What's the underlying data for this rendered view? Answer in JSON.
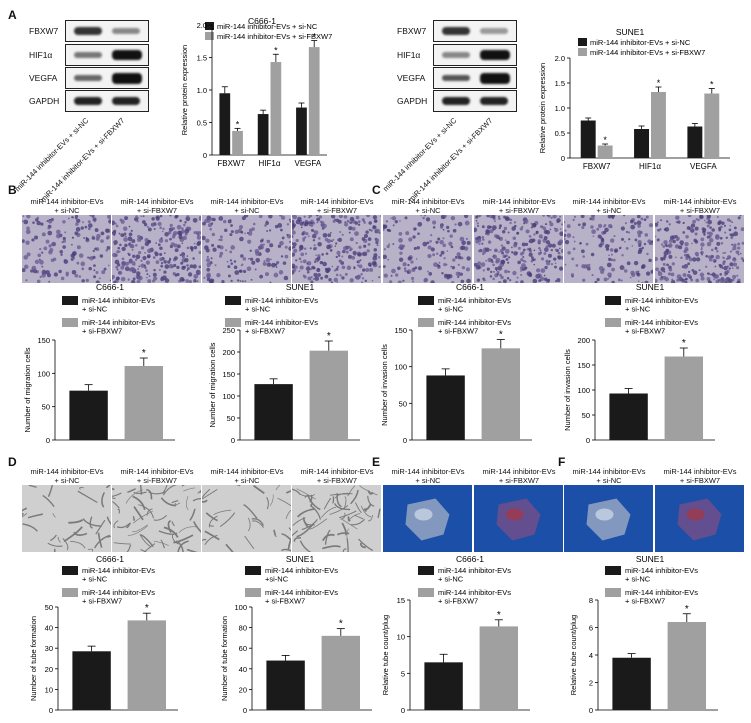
{
  "panel_letters": {
    "a": "A",
    "b1": "B",
    "c": "C",
    "d": "D",
    "e": "E",
    "f": "F"
  },
  "blot_labels": [
    "FBXW7",
    "HIF1α",
    "VEGFA",
    "GAPDH"
  ],
  "blot_lanes": [
    "miR-144 inhibitor-EVs + si-NC",
    "miR-144 inhibitor-EVs + si-FBXW7"
  ],
  "micro_captions": {
    "nc": "miR-144 inhibitor-EVs\n+ si-NC",
    "fb": "miR-144 inhibitor-EVs\n+ si-FBXW7"
  },
  "colors": {
    "nc": "#1a1a1a",
    "fb": "#a0a0a0",
    "transwell": "#b8b2c9",
    "tube": "#cfcfcf",
    "plug_bg": "#1b4fa8"
  },
  "chart_data": [
    {
      "id": "A-C666",
      "type": "bar",
      "title": "C666-1",
      "ylabel": "Relative protein expression",
      "categories": [
        "FBXW7",
        "HIF1α",
        "VEGFA"
      ],
      "series": [
        {
          "name": "miR-144 inhibitor-EVs + si-NC",
          "values": [
            0.95,
            0.63,
            0.73
          ],
          "err": [
            0.1,
            0.06,
            0.07
          ]
        },
        {
          "name": "miR-144 inhibitor-EVs + si-FBXW7",
          "values": [
            0.37,
            1.43,
            1.66
          ],
          "err": [
            0.04,
            0.12,
            0.1
          ]
        }
      ],
      "ylim": [
        0,
        2.0
      ],
      "yticks": [
        "0",
        "0.5",
        "1.0",
        "1.5",
        "2.0"
      ],
      "sig": "*",
      "legend": "top"
    },
    {
      "id": "A-SUNE",
      "type": "bar",
      "title": "SUNE1",
      "ylabel": "Relative protein expression",
      "categories": [
        "FBXW7",
        "HIF1α",
        "VEGFA"
      ],
      "series": [
        {
          "name": "miR-144 inhibitor-EVs + si-NC",
          "values": [
            0.75,
            0.58,
            0.63
          ],
          "err": [
            0.05,
            0.06,
            0.06
          ]
        },
        {
          "name": "miR-144 inhibitor-EVs + si-FBXW7",
          "values": [
            0.25,
            1.32,
            1.29
          ],
          "err": [
            0.03,
            0.1,
            0.1
          ]
        }
      ],
      "ylim": [
        0,
        2.0
      ],
      "yticks": [
        "0",
        "0.5",
        "1.0",
        "1.5",
        "2.0"
      ],
      "sig": "*",
      "legend": "top"
    },
    {
      "id": "B-C666",
      "type": "bar",
      "title": "C666-1",
      "ylabel": "Number of migration cells",
      "categories": [
        ""
      ],
      "series": [
        {
          "name": "miR-144 inhibitor-EVs\n+ si-NC",
          "values": [
            74
          ],
          "err": [
            9
          ]
        },
        {
          "name": "miR-144 inhibitor-EVs\n+ si-FBXW7",
          "values": [
            111
          ],
          "err": [
            12
          ]
        }
      ],
      "ylim": [
        0,
        150
      ],
      "yticks": [
        "0",
        "50",
        "100",
        "150"
      ],
      "sig": "*",
      "legend": "top"
    },
    {
      "id": "B-SUNE",
      "type": "bar",
      "title": "SUNE1",
      "ylabel": "Number of migration cells",
      "categories": [
        ""
      ],
      "series": [
        {
          "name": "miR-144 inhibitor-EVs\n+ si-NC",
          "values": [
            127
          ],
          "err": [
            12
          ]
        },
        {
          "name": "miR-144 inhibitor-EVs\n+ si-FBXW7",
          "values": [
            203
          ],
          "err": [
            22
          ]
        }
      ],
      "ylim": [
        0,
        250
      ],
      "yticks": [
        "0",
        "50",
        "100",
        "150",
        "200",
        "250"
      ],
      "sig": "*",
      "legend": "top"
    },
    {
      "id": "C-C666",
      "type": "bar",
      "title": "C666-1",
      "ylabel": "Number of invasion cells",
      "categories": [
        ""
      ],
      "series": [
        {
          "name": "miR-144 inhibitor-EVs\n+ si-NC",
          "values": [
            88
          ],
          "err": [
            9
          ]
        },
        {
          "name": "miR-144 inhibitor-EVs\n+ si-FBXW7",
          "values": [
            125
          ],
          "err": [
            12
          ]
        }
      ],
      "ylim": [
        0,
        150
      ],
      "yticks": [
        "0",
        "50",
        "100",
        "150"
      ],
      "sig": "*",
      "legend": "top"
    },
    {
      "id": "C-SUNE",
      "type": "bar",
      "title": "SUNE1",
      "ylabel": "Number of invasion cells",
      "categories": [
        ""
      ],
      "series": [
        {
          "name": "miR-144 inhibitor-EVs\n+ si-NC",
          "values": [
            93
          ],
          "err": [
            10
          ]
        },
        {
          "name": "miR-144 inhibitor-EVs\n+ si-FBXW7",
          "values": [
            167
          ],
          "err": [
            17
          ]
        }
      ],
      "ylim": [
        0,
        200
      ],
      "yticks": [
        "0",
        "50",
        "100",
        "150",
        "200"
      ],
      "sig": "*",
      "legend": "top"
    },
    {
      "id": "D-C666",
      "type": "bar",
      "title": "C666-1",
      "ylabel": "Number of tube formation",
      "categories": [
        ""
      ],
      "series": [
        {
          "name": "miR-144 inhibitor-EVs\n+ si-NC",
          "values": [
            28.5
          ],
          "err": [
            2.5
          ]
        },
        {
          "name": "miR-144 inhibitor-EVs\n+ si-FBXW7",
          "values": [
            43.5
          ],
          "err": [
            3.5
          ]
        }
      ],
      "ylim": [
        0,
        50
      ],
      "yticks": [
        "0",
        "10",
        "20",
        "30",
        "40",
        "50"
      ],
      "sig": "*",
      "legend": "top"
    },
    {
      "id": "D-SUNE",
      "type": "bar",
      "title": "SUNE1",
      "ylabel": "Number of tube formation",
      "categories": [
        ""
      ],
      "series": [
        {
          "name": "miR-144 inhibitor-EVs\n+si-NC",
          "values": [
            48
          ],
          "err": [
            5
          ]
        },
        {
          "name": "miR-144 inhibitor-EVs\n+ si-FBXW7",
          "values": [
            72
          ],
          "err": [
            7
          ]
        }
      ],
      "ylim": [
        0,
        100
      ],
      "yticks": [
        "0",
        "20",
        "40",
        "60",
        "80",
        "100"
      ],
      "sig": "*",
      "legend": "top"
    },
    {
      "id": "E",
      "type": "bar",
      "title": "C666-1",
      "ylabel": "Relative tube count/plug",
      "categories": [
        ""
      ],
      "series": [
        {
          "name": "miR-144 inhibitor-EVs\n+ si-NC",
          "values": [
            6.5
          ],
          "err": [
            1.1
          ]
        },
        {
          "name": "miR-144 inhibitor-EVs\n+ si-FBXW7",
          "values": [
            11.4
          ],
          "err": [
            0.9
          ]
        }
      ],
      "ylim": [
        0,
        15
      ],
      "yticks": [
        "0",
        "5",
        "10",
        "15"
      ],
      "sig": "*",
      "legend": "top"
    },
    {
      "id": "F",
      "type": "bar",
      "title": "SUNE1",
      "ylabel": "Relative tube count/plug",
      "categories": [
        ""
      ],
      "series": [
        {
          "name": "miR-144 inhibitor-EVs\n+ si-NC",
          "values": [
            3.8
          ],
          "err": [
            0.3
          ]
        },
        {
          "name": "miR-144 inhibitor-EVs\n+ si-FBXW7",
          "values": [
            6.4
          ],
          "err": [
            0.6
          ]
        }
      ],
      "ylim": [
        0,
        8
      ],
      "yticks": [
        "0",
        "2",
        "4",
        "6",
        "8"
      ],
      "sig": "*",
      "legend": "top"
    }
  ]
}
